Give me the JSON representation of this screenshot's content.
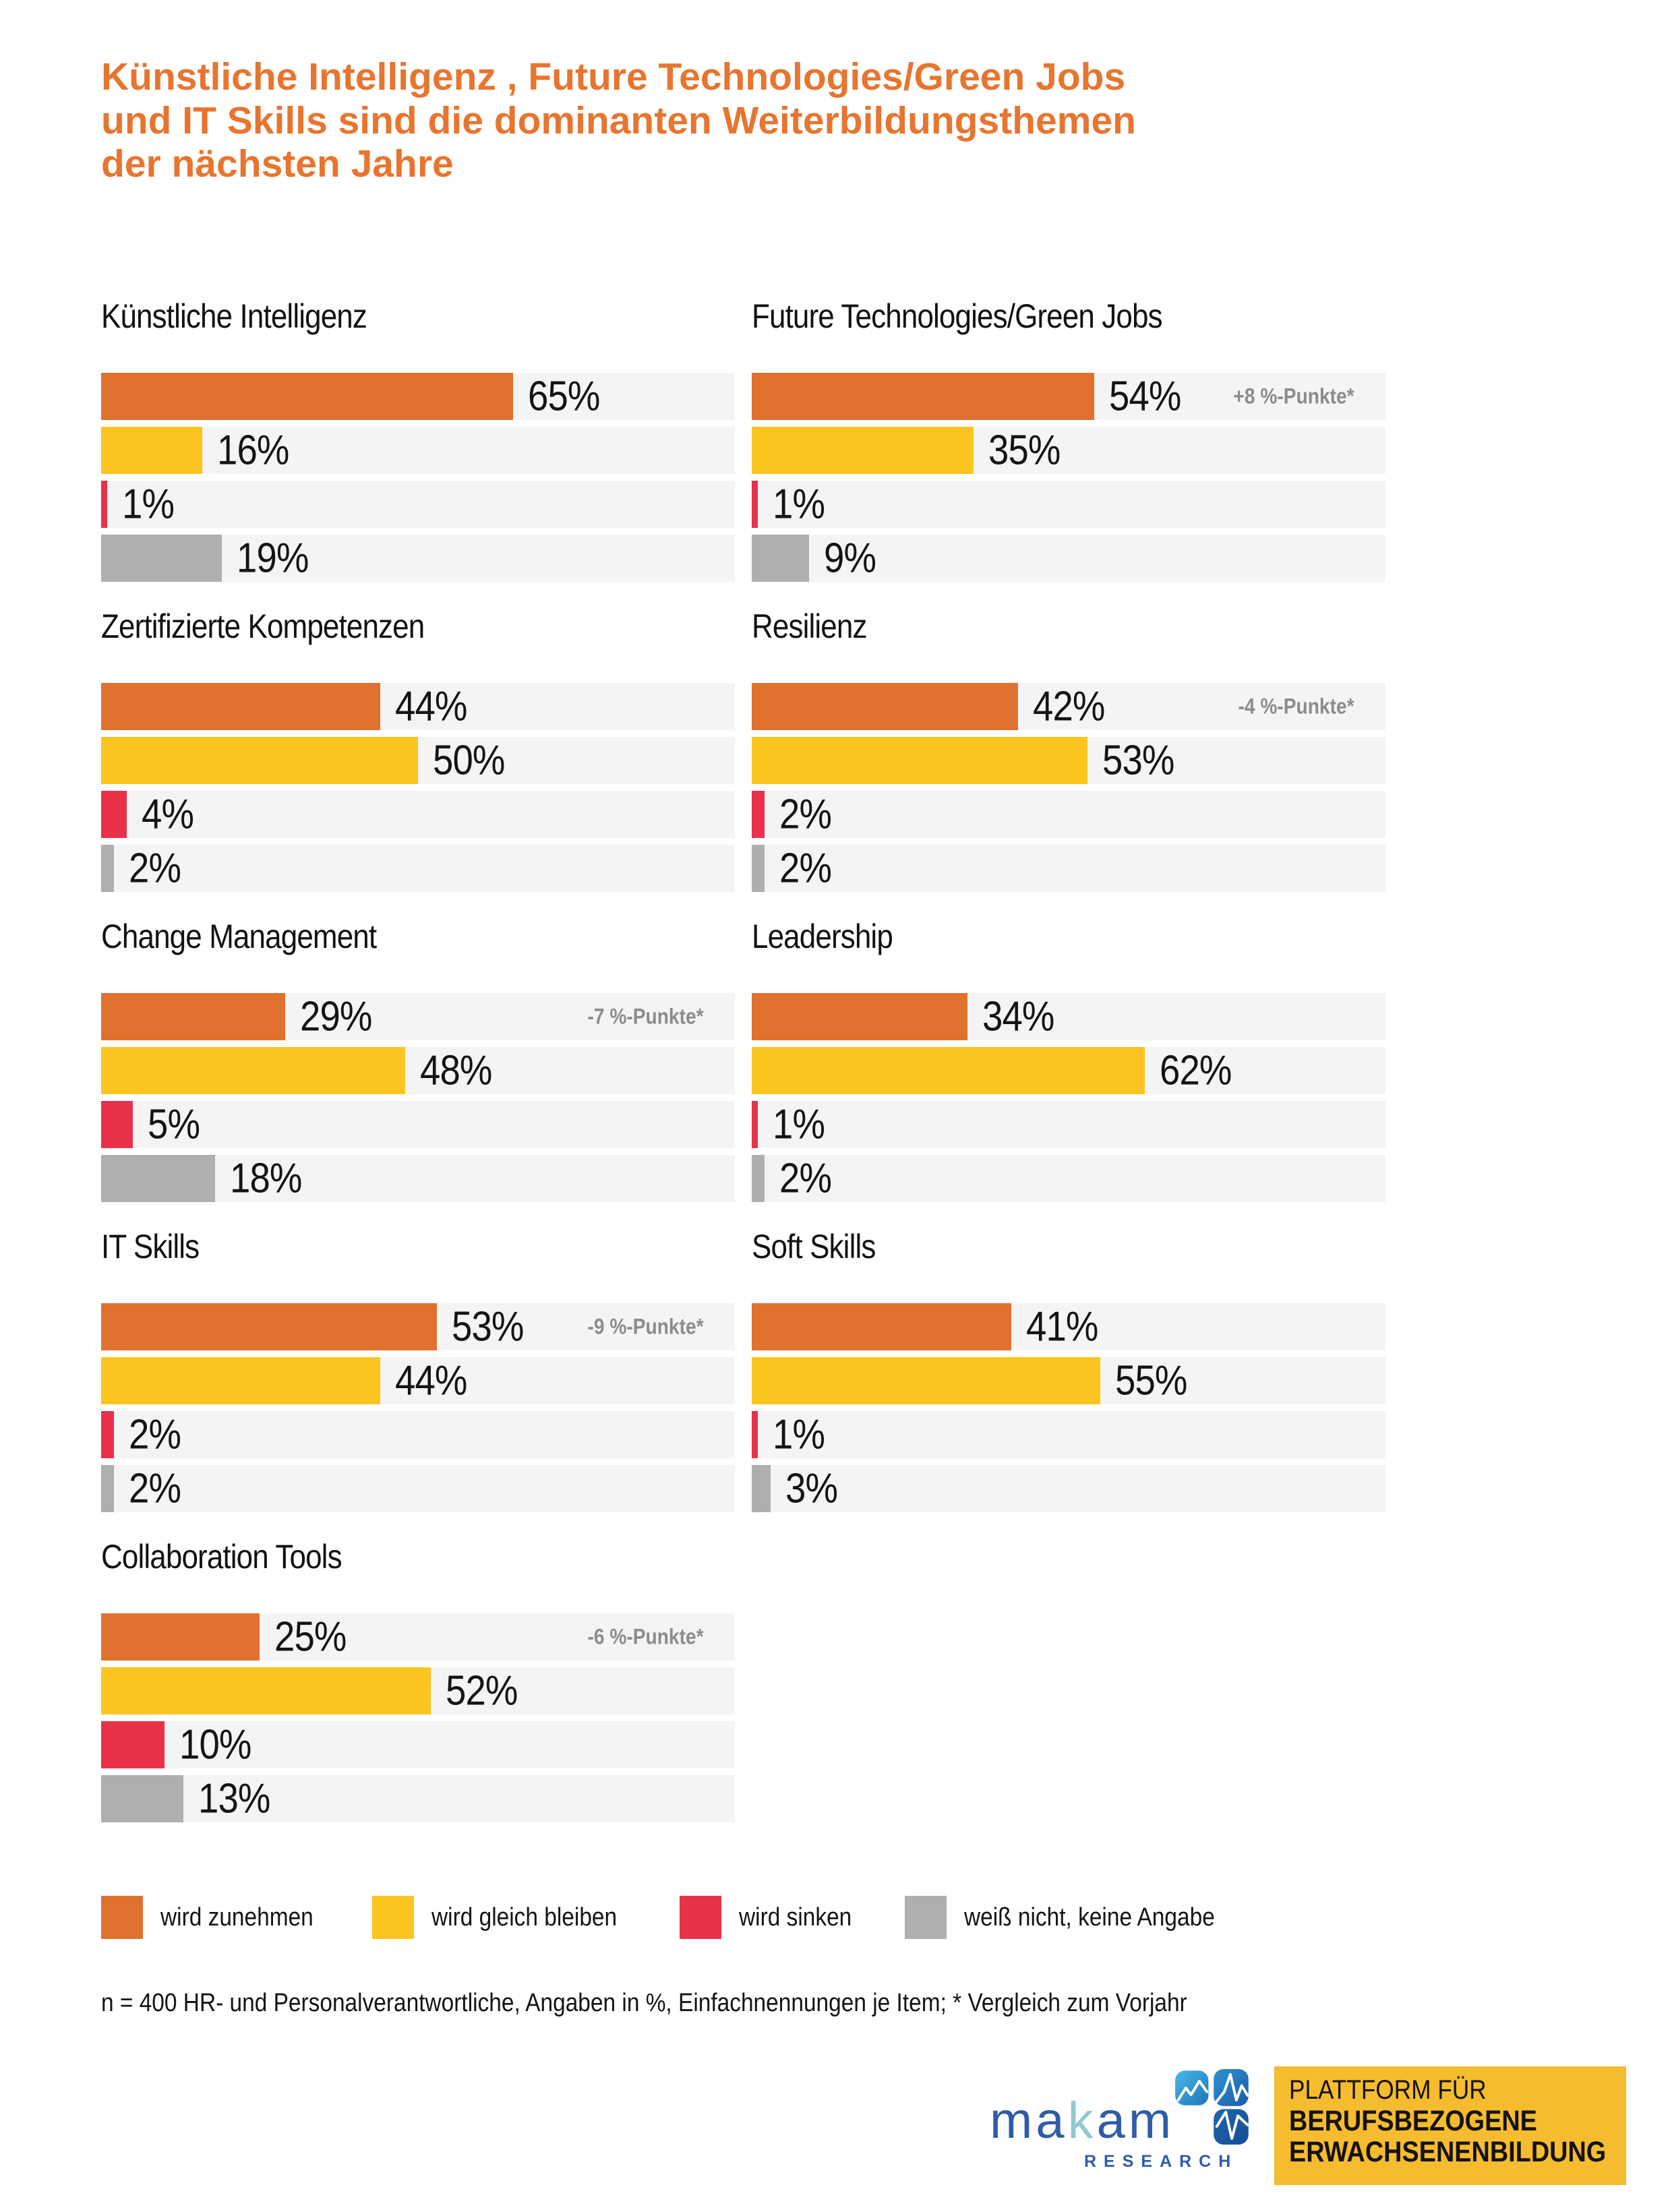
{
  "page": {
    "title": "Künstliche Intelligenz , Future Technologies/Green Jobs und IT Skills sind die dominanten Weiterbildungsthemen der nächsten Jahre",
    "footnote": "n = 400 HR- und Personalverantwortliche, Angaben in %, Einfachnennungen je Item; * Vergleich zum Vorjahr"
  },
  "colors": {
    "increase": "#E0712F",
    "stay": "#FCC41F",
    "decrease": "#E9314A",
    "unknown": "#B0AEAE",
    "track": "#F4F4F4",
    "title": "#E8752F",
    "delta_text": "#8C8C8C",
    "badge_background": "#F4BC2E"
  },
  "legend": [
    {
      "key": "increase",
      "label": "wird zunehmen"
    },
    {
      "key": "stay",
      "label": "wird gleich bleiben"
    },
    {
      "key": "decrease",
      "label": "wird sinken"
    },
    {
      "key": "unknown",
      "label": "weiß nicht, keine Angabe"
    }
  ],
  "chart_data": {
    "type": "bar",
    "orientation": "horizontal",
    "unit": "%",
    "value_axis_max": 100,
    "grid": false,
    "legend_position": "bottom",
    "series_labels": [
      "wird zunehmen",
      "wird gleich bleiben",
      "wird sinken",
      "weiß nicht, keine Angabe"
    ],
    "series_keys": [
      "increase",
      "stay",
      "decrease",
      "unknown"
    ],
    "items": [
      {
        "name": "Künstliche Intelligenz",
        "values": [
          65,
          16,
          1,
          19
        ],
        "labels": [
          "65%",
          "16%",
          "1%",
          "19%"
        ],
        "delta": null
      },
      {
        "name": "Future Technologies/Green Jobs",
        "values": [
          54,
          35,
          1,
          9
        ],
        "labels": [
          "54%",
          "35%",
          "1%",
          "9%"
        ],
        "delta": "+8 %-Punkte*"
      },
      {
        "name": "Zertifizierte Kompetenzen",
        "values": [
          44,
          50,
          4,
          2
        ],
        "labels": [
          "44%",
          "50%",
          "4%",
          "2%"
        ],
        "delta": null
      },
      {
        "name": "Resilienz",
        "values": [
          42,
          53,
          2,
          2
        ],
        "labels": [
          "42%",
          "53%",
          "2%",
          "2%"
        ],
        "delta": "-4 %-Punkte*"
      },
      {
        "name": "Change Management",
        "values": [
          29,
          48,
          5,
          18
        ],
        "labels": [
          "29%",
          "48%",
          "5%",
          "18%"
        ],
        "delta": "-7 %-Punkte*"
      },
      {
        "name": "Leadership",
        "values": [
          34,
          62,
          1,
          2
        ],
        "labels": [
          "34%",
          "62%",
          "1%",
          "2%"
        ],
        "delta": null
      },
      {
        "name": "IT Skills",
        "values": [
          53,
          44,
          2,
          2
        ],
        "labels": [
          "53%",
          "44%",
          "2%",
          "2%"
        ],
        "delta": "-9 %-Punkte*"
      },
      {
        "name": "Soft Skills",
        "values": [
          41,
          55,
          1,
          3
        ],
        "labels": [
          "41%",
          "55%",
          "1%",
          "3%"
        ],
        "delta": null
      },
      {
        "name": "Collaboration Tools",
        "values": [
          25,
          52,
          10,
          13
        ],
        "labels": [
          "25%",
          "52%",
          "10%",
          "13%"
        ],
        "delta": "-6 %-Punkte*"
      }
    ]
  },
  "footer": {
    "makam": {
      "part1": "ma",
      "part2": "k",
      "part3": "am",
      "sub": "RESEARCH"
    },
    "badge": {
      "line1": "PLATTFORM FÜR",
      "line2": "BERUFSBEZOGENE",
      "line3": "ERWACHSENENBILDUNG"
    }
  }
}
